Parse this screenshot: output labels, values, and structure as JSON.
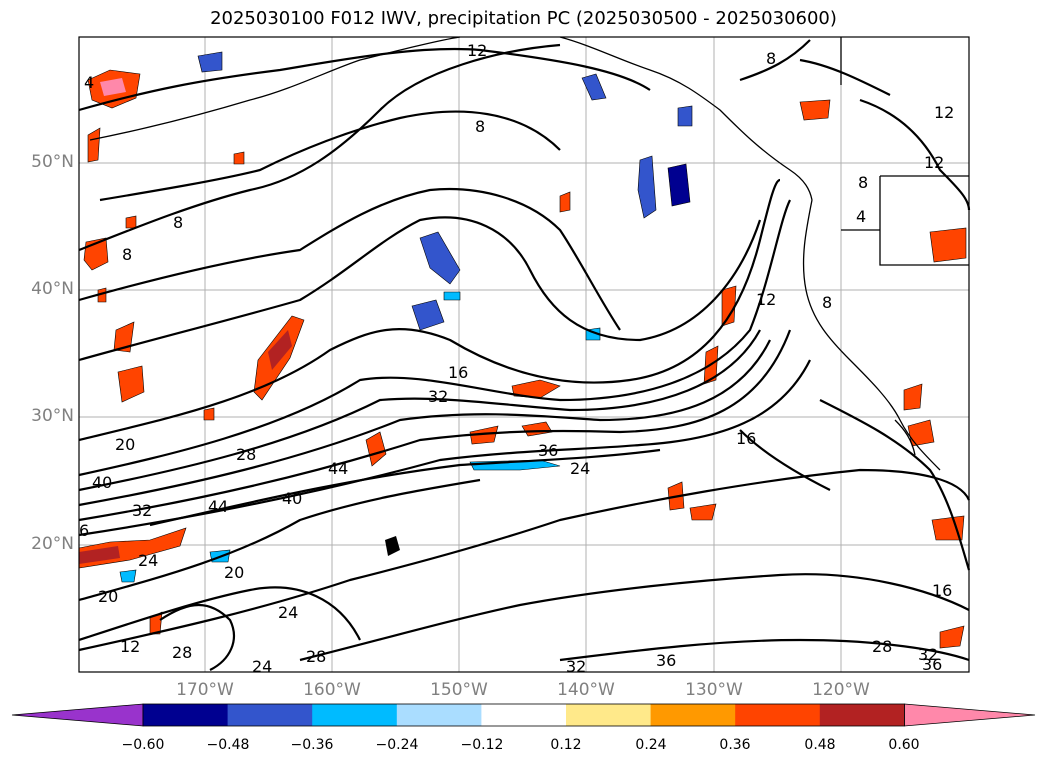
{
  "title": "2025030100 F012 IWV, precipitation PC (2025030500 - 2025030600)",
  "lat_labels": [
    "50°N",
    "40°N",
    "30°N",
    "20°N"
  ],
  "lon_labels": [
    "170°W",
    "160°W",
    "150°W",
    "140°W",
    "130°W",
    "120°W"
  ],
  "contour_labels": [
    "4",
    "12",
    "8",
    "8",
    "8",
    "8",
    "12",
    "12",
    "12",
    "16",
    "32",
    "20",
    "28",
    "40",
    "32",
    "44",
    "44",
    "40",
    "36",
    "24",
    "6",
    "24",
    "20",
    "20",
    "24",
    "12",
    "28",
    "24",
    "28",
    "36",
    "32",
    "28",
    "32",
    "36",
    "16",
    "16",
    "8",
    "4",
    "8"
  ],
  "colorbar": {
    "ticks": [
      "−0.60",
      "−0.48",
      "−0.36",
      "−0.24",
      "−0.12",
      "0.12",
      "0.24",
      "0.36",
      "0.48",
      "0.60"
    ],
    "colors": [
      "#9933cc",
      "#000090",
      "#3355cc",
      "#00bbff",
      "#aaddff",
      "#ffffff",
      "#ffe98a",
      "#ff9900",
      "#ff4400",
      "#b22222",
      "#ff88aa"
    ]
  }
}
